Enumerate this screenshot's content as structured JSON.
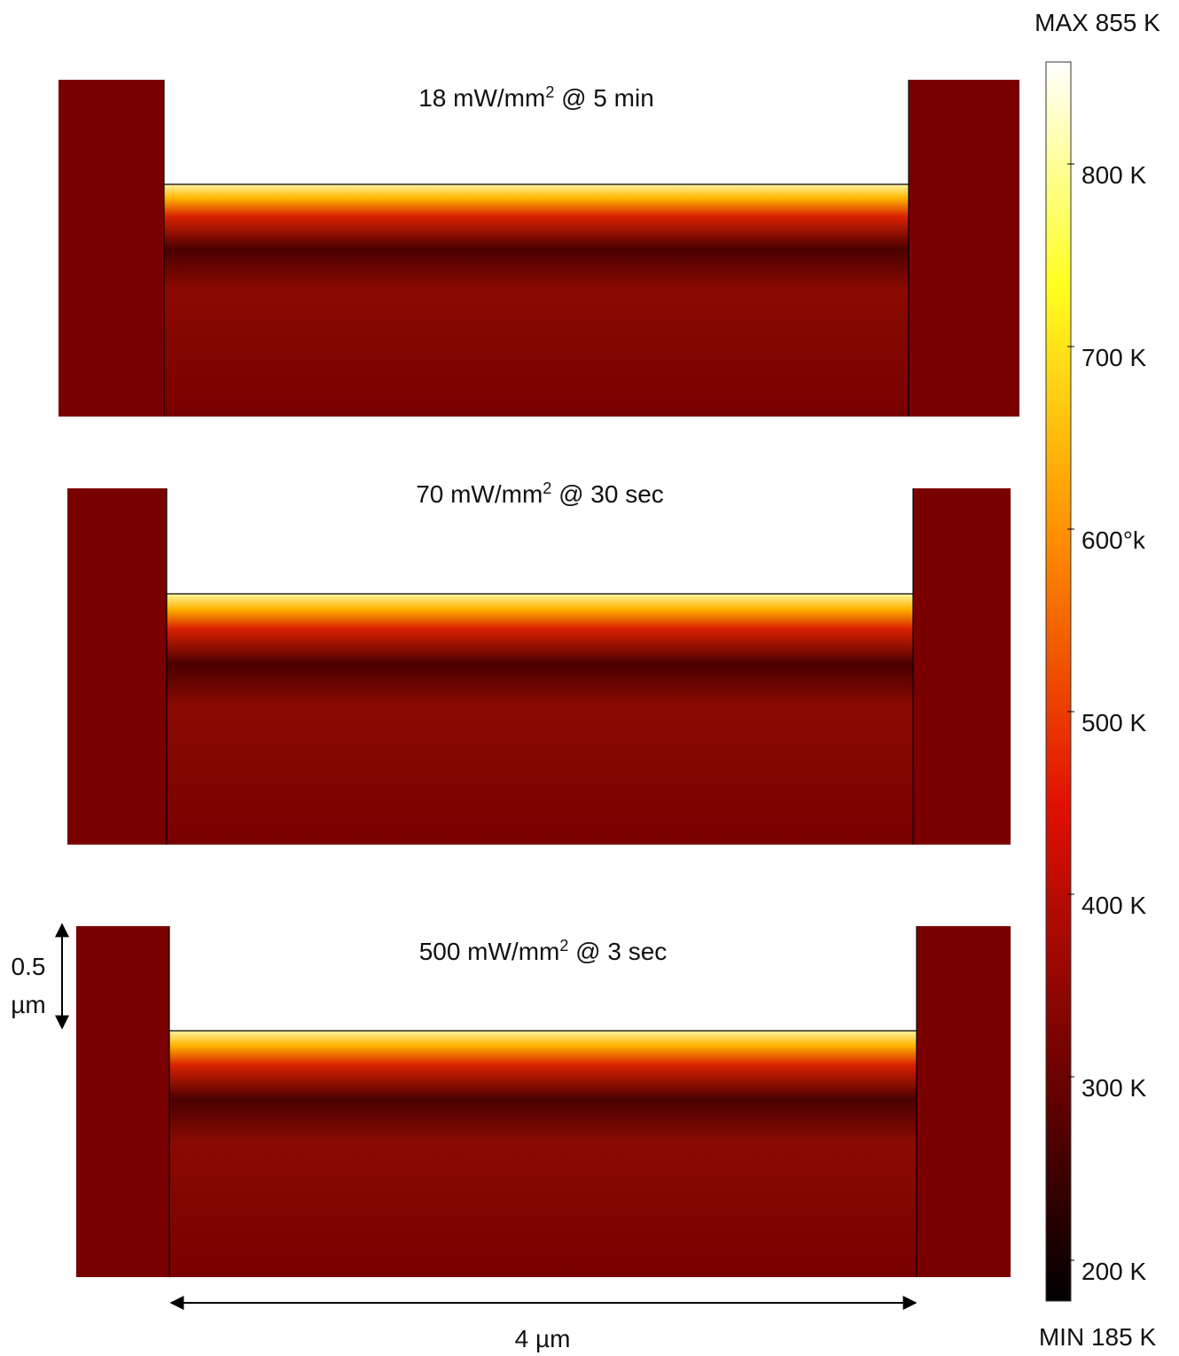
{
  "panels": [
    {
      "title": {
        "before": "18 mW/mm",
        "sup": "2",
        "after": " @ 5 min"
      }
    },
    {
      "title": {
        "before": "70 mW/mm",
        "sup": "2",
        "after": " @ 30 sec"
      }
    },
    {
      "title": {
        "before": "500 mW/mm",
        "sup": "2",
        "after": " @ 3 sec"
      }
    }
  ],
  "colorbar": {
    "max_label": "MAX 855 K",
    "min_label": "MIN 185 K",
    "tick_labels": [
      "800 K",
      "700 K",
      "600°k",
      "500 K",
      "400 K",
      "300 K",
      "200 K"
    ]
  },
  "scale": {
    "vertical": [
      "0.5",
      "µm"
    ],
    "horizontal": "4 µm"
  }
}
